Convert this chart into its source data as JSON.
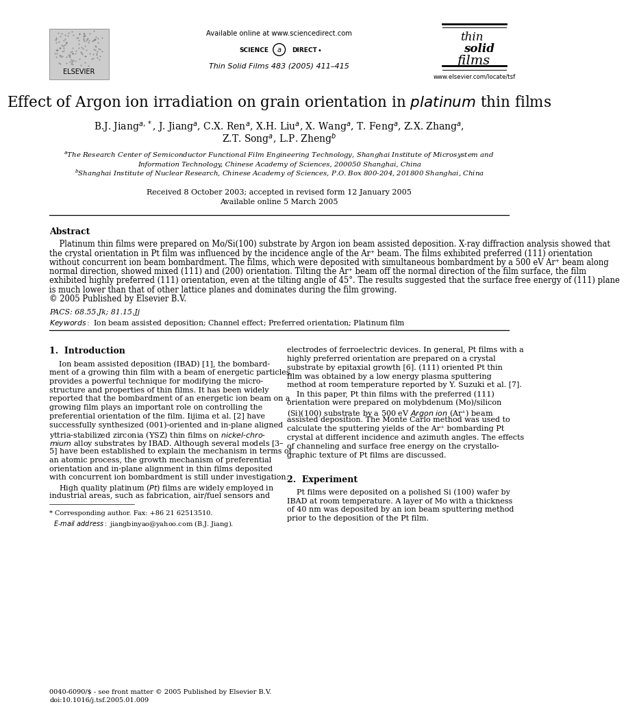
{
  "page_width": 9.92,
  "page_height": 13.23,
  "bg_color": "#ffffff",
  "header": {
    "available_online": "Available online at www.sciencedirect.com",
    "journal_ref": "Thin Solid Films 483 (2005) 411–415",
    "elsevier_label": "ELSEVIER",
    "website": "www.elsevier.com/locate/tsf"
  },
  "title_text": "Effect of Argon ion irradiation on grain orientation in $\\mathit{platinum}$ thin films",
  "authors_line1": "B.J. Jiang$^{a,*}$, J. Jiang$^{a}$, C.X. Ren$^{a}$, X.H. Liu$^{a}$, X. Wang$^{a}$, T. Feng$^{a}$, Z.X. Zhang$^{a}$,",
  "authors_line2": "Z.T. Song$^{a}$, L.P. Zheng$^{b}$",
  "affil_a1": "$^{a}$The Research Center of Semiconductor Functional Film Engineering Technology, Shanghai Institute of Microsystem and",
  "affil_a2": "Information Technology, Chinese Academy of Sciences, 200050 Shanghai, China",
  "affil_b": "$^{b}$Shanghai Institute of Nuclear Research, Chinese Academy of Sciences, P.O. Box 800-204, 201800 Shanghai, China",
  "date1": "Received 8 October 2003; accepted in revised form 12 January 2005",
  "date2": "Available online 5 March 2005",
  "abstract_title": "Abstract",
  "abstract_lines": [
    "    Platinum thin films were prepared on Mo/Si(100) substrate by Argon ion beam assisted deposition. X-ray diffraction analysis showed that",
    "the crystal orientation in Pt film was influenced by the incidence angle of the Ar⁺ beam. The films exhibited preferred (111) orientation",
    "without concurrent ion beam bombardment. The films, which were deposited with simultaneous bombardment by a 500 eV Ar⁺ beam along",
    "normal direction, showed mixed (111) and (200) orientation. Tilting the Ar⁺ beam off the normal direction of the film surface, the film",
    "exhibited highly preferred (111) orientation, even at the tilting angle of 45°. The results suggested that the surface free energy of (111) plane",
    "is much lower than that of other lattice planes and dominates during the film growing.",
    "© 2005 Published by Elsevier B.V."
  ],
  "pacs": "PACS: 68.55.Jk; 81.15.Jj",
  "keywords": "$\\it{Keywords:}$ Ion beam assisted deposition; Channel effect; Preferred orientation; Platinum film",
  "intro_title": "1.  Introduction",
  "intro_left_lines": [
    "    Ion beam assisted deposition (IBAD) [1], the bombard-",
    "ment of a growing thin film with a beam of energetic particles,",
    "provides a powerful technique for modifying the micro-",
    "structure and properties of thin films. It has been widely",
    "reported that the bombardment of an energetic ion beam on a",
    "growing film plays an important role on controlling the",
    "preferential orientation of the film. Iijima et al. [2] have",
    "successfully synthesized (001)-oriented and in-plane aligned",
    "yttria-stabilized zirconia (YSZ) thin films on $\\it{nickel}$-$\\it{chro}$-",
    "$\\it{mium}$ alloy substrates by IBAD. Although several models [3–",
    "5] have been established to explain the mechanism in terms of",
    "an atomic process, the growth mechanism of preferential",
    "orientation and in-plane alignment in thin films deposited",
    "with concurrent ion bombardment is still under investigation.",
    "    High quality platinum ($\\it{Pt}$) films are widely employed in",
    "industrial areas, such as fabrication, air/fuel sensors and"
  ],
  "intro_right_lines": [
    "electrodes of ferroelectric devices. In general, Pt films with a",
    "highly preferred orientation are prepared on a crystal",
    "substrate by epitaxial growth [6]. (111) oriented Pt thin",
    "film was obtained by a low energy plasma sputtering",
    "method at room temperature reported by Y. Suzuki et al. [7].",
    "    In this paper, Pt thin films with the preferred (111)",
    "orientation were prepared on molybdenum (Mo)/silicon",
    "(Si)(100) substrate by a 500 eV $\\it{Argon\\ ion}$ (Ar⁺) beam",
    "assisted deposition. The Monte Carlo method was used to",
    "calculate the sputtering yields of the Ar⁺ bombarding Pt",
    "crystal at different incidence and azimuth angles. The effects",
    "of channeling and surface free energy on the crystallo-",
    "graphic texture of Pt films are discussed."
  ],
  "exp_title": "2.  Experiment",
  "exp_lines": [
    "    Pt films were deposited on a polished Si (100) wafer by",
    "IBAD at room temperature. A layer of Mo with a thickness",
    "of 40 nm was deposited by an ion beam sputtering method",
    "prior to the deposition of the Pt film."
  ],
  "footnote1": "* Corresponding author. Fax: +86 21 62513510.",
  "footnote2": "  $\\it{E}$-$\\it{mail\\ address:}$ jiangbinyao@yahoo.com (B.J. Jiang).",
  "bottom1": "0040-6090/$ - see front matter © 2005 Published by Elsevier B.V.",
  "bottom2": "doi:10.1016/j.tsf.2005.01.009"
}
